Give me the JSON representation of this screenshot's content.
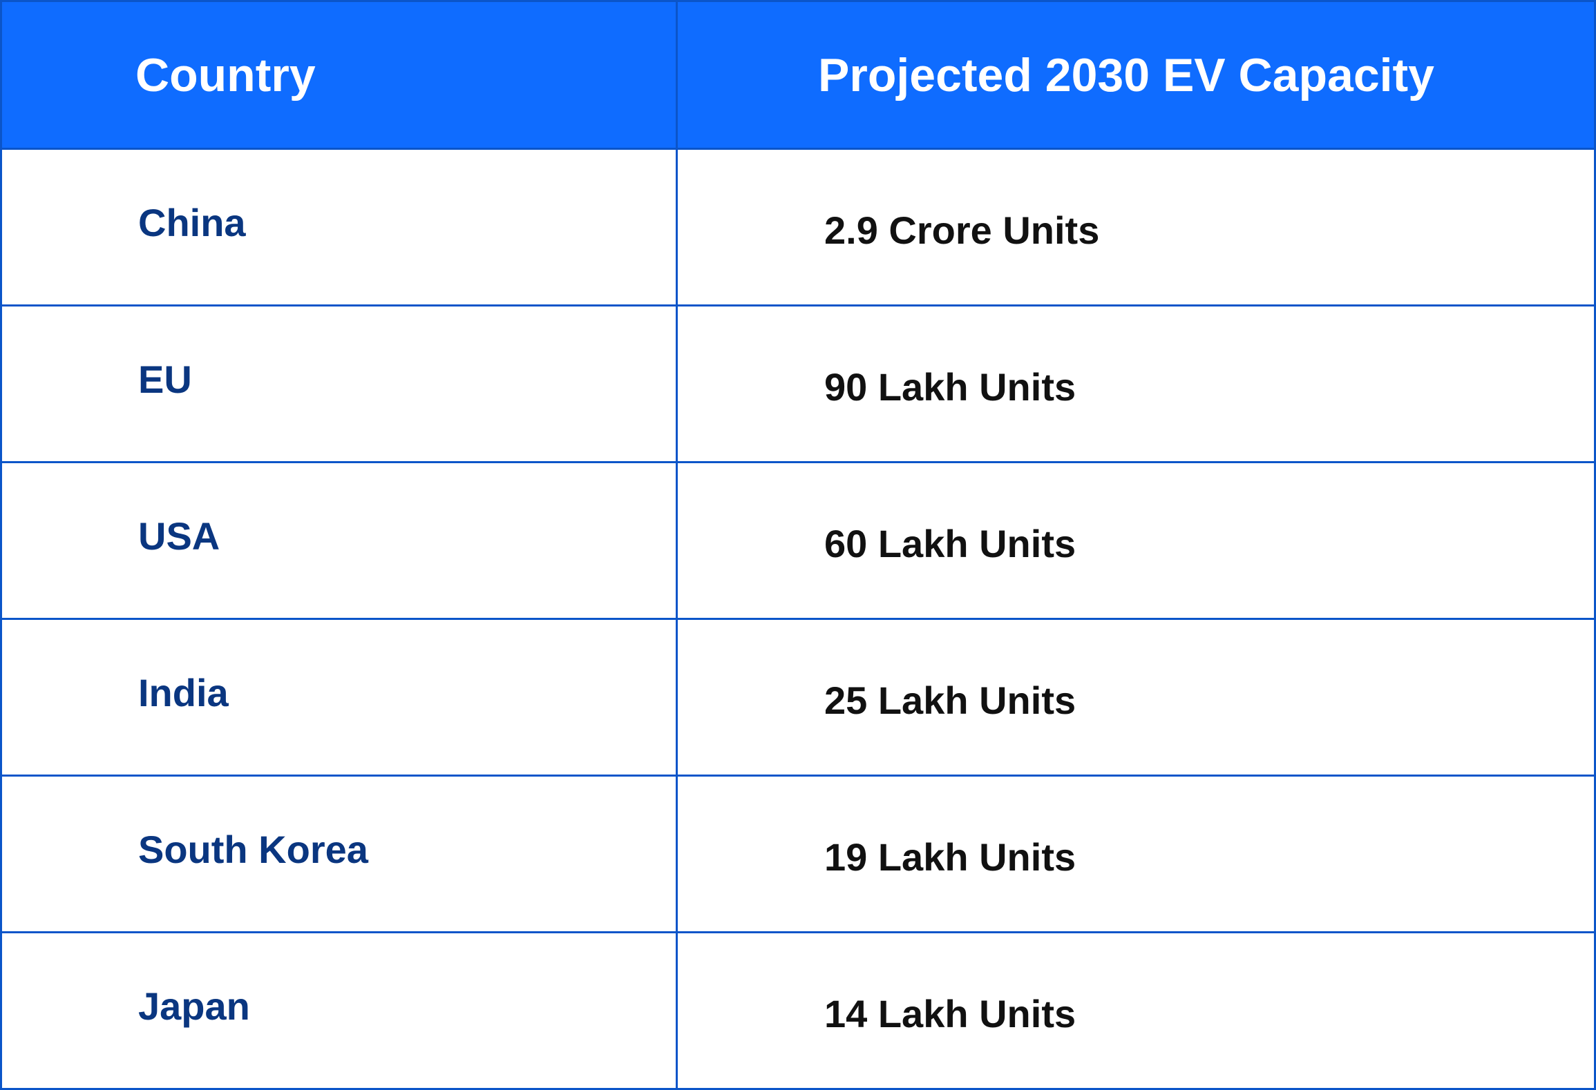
{
  "table": {
    "headers": [
      "Country",
      "Projected 2030 EV Capacity"
    ],
    "rows": [
      {
        "country": "China",
        "capacity": "2.9 Crore Units",
        "highlighted": false
      },
      {
        "country": "EU",
        "capacity": "90 Lakh Units",
        "highlighted": false
      },
      {
        "country": "USA",
        "capacity": "60 Lakh Units",
        "highlighted": false
      },
      {
        "country": "India",
        "capacity": "25 Lakh Units",
        "highlighted": true
      },
      {
        "country": "South Korea",
        "capacity": "19 Lakh Units",
        "highlighted": false
      },
      {
        "country": "Japan",
        "capacity": "14 Lakh Units",
        "highlighted": false
      }
    ]
  },
  "colors": {
    "header_bg": "#0f6cff",
    "border": "#0b55c9",
    "country_text": "#0a3680",
    "value_text": "#111111"
  }
}
